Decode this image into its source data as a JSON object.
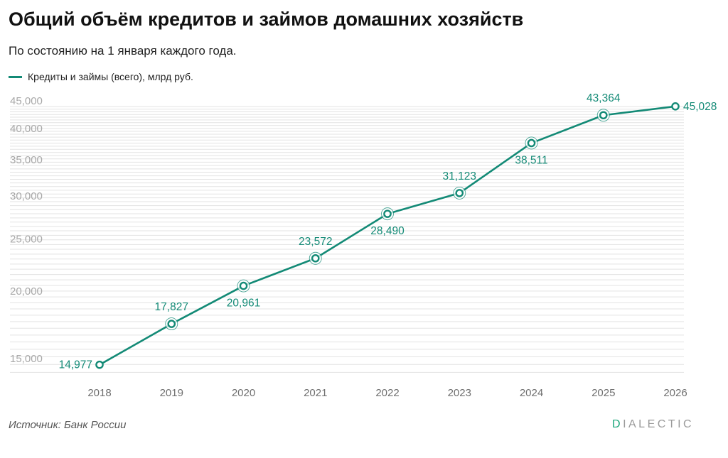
{
  "header": {
    "title": "Общий объём кредитов и займов домашних хозяйств",
    "subtitle": "По состоянию на 1 января каждого года."
  },
  "legend": {
    "label": "Кредиты и займы (всего), млрд руб."
  },
  "footer": {
    "source": "Источник: Банк России",
    "brand_first": "D",
    "brand_rest": "IALECTIC"
  },
  "colors": {
    "series": "#138a76",
    "grid": "#e3e3e3",
    "tick": "#a8a8a8",
    "label": "#138a76"
  },
  "chart_data": {
    "type": "line",
    "title": "Общий объём кредитов и займов домашних хозяйств",
    "subtitle": "По состоянию на 1 января каждого года.",
    "xlabel": "",
    "ylabel": "",
    "y_scale": "log",
    "ylim": [
      14000,
      45000
    ],
    "grid": true,
    "legend_position": "top-left",
    "y_ticks": [
      15000,
      20000,
      25000,
      30000,
      35000,
      40000,
      45000
    ],
    "y_tick_labels": [
      "15,000",
      "20,000",
      "25,000",
      "30,000",
      "35,000",
      "40,000",
      "45,000"
    ],
    "categories": [
      "2018",
      "2019",
      "2020",
      "2021",
      "2022",
      "2023",
      "2024",
      "2025",
      "2026"
    ],
    "series": [
      {
        "name": "Кредиты и займы (всего), млрд руб.",
        "values": [
          14977,
          17827,
          20961,
          23572,
          28490,
          31123,
          38511,
          43364,
          45028
        ],
        "value_labels": [
          "14,977",
          "17,827",
          "20,961",
          "23,572",
          "28,490",
          "31,123",
          "38,511",
          "43,364",
          "45,028"
        ]
      }
    ]
  }
}
